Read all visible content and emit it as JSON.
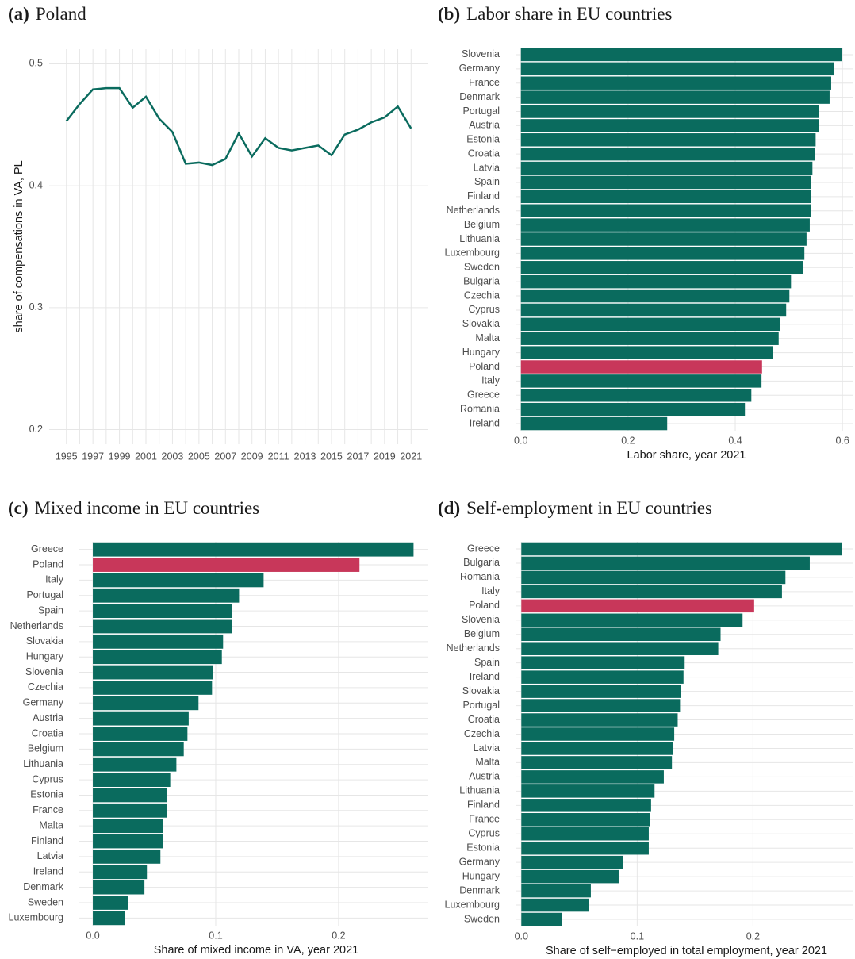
{
  "chart_data": [
    {
      "type": "line",
      "label": "(a)",
      "title": "Poland",
      "y_label": "share of compensations in VA, PL",
      "x": [
        1995,
        1996,
        1997,
        1998,
        1999,
        2000,
        2001,
        2002,
        2003,
        2004,
        2005,
        2006,
        2007,
        2008,
        2009,
        2010,
        2011,
        2012,
        2013,
        2014,
        2015,
        2016,
        2017,
        2018,
        2019,
        2020,
        2021
      ],
      "values": [
        0.453,
        0.467,
        0.479,
        0.48,
        0.48,
        0.464,
        0.473,
        0.455,
        0.444,
        0.418,
        0.419,
        0.417,
        0.422,
        0.443,
        0.424,
        0.439,
        0.431,
        0.429,
        0.431,
        0.433,
        0.425,
        0.442,
        0.446,
        0.452,
        0.456,
        0.465,
        0.447
      ],
      "color": "#0a6b5e",
      "xlim": [
        1993.7,
        2022.3
      ],
      "xticks": [
        1995,
        1997,
        1999,
        2001,
        2003,
        2005,
        2007,
        2009,
        2011,
        2013,
        2015,
        2017,
        2019,
        2021
      ],
      "ylim": [
        0.188,
        0.512
      ],
      "yticks": [
        0.2,
        0.3,
        0.4,
        0.5
      ],
      "grid": true
    },
    {
      "type": "barh",
      "label": "(b)",
      "title": "Labor share in EU countries",
      "x_label": "Labor share, year 2021",
      "categories": [
        "Slovenia",
        "Germany",
        "France",
        "Denmark",
        "Portugal",
        "Austria",
        "Estonia",
        "Croatia",
        "Latvia",
        "Spain",
        "Finland",
        "Netherlands",
        "Belgium",
        "Lithuania",
        "Luxembourg",
        "Sweden",
        "Bulgaria",
        "Czechia",
        "Cyprus",
        "Slovakia",
        "Malta",
        "Hungary",
        "Poland",
        "Italy",
        "Greece",
        "Romania",
        "Ireland"
      ],
      "values": [
        0.599,
        0.584,
        0.579,
        0.576,
        0.556,
        0.556,
        0.55,
        0.548,
        0.544,
        0.541,
        0.541,
        0.541,
        0.539,
        0.533,
        0.529,
        0.527,
        0.504,
        0.501,
        0.495,
        0.484,
        0.481,
        0.47,
        0.45,
        0.449,
        0.43,
        0.418,
        0.273
      ],
      "colors": [
        "#0a6b5e",
        "#0a6b5e",
        "#0a6b5e",
        "#0a6b5e",
        "#0a6b5e",
        "#0a6b5e",
        "#0a6b5e",
        "#0a6b5e",
        "#0a6b5e",
        "#0a6b5e",
        "#0a6b5e",
        "#0a6b5e",
        "#0a6b5e",
        "#0a6b5e",
        "#0a6b5e",
        "#0a6b5e",
        "#0a6b5e",
        "#0a6b5e",
        "#0a6b5e",
        "#0a6b5e",
        "#0a6b5e",
        "#0a6b5e",
        "#c8375a",
        "#0a6b5e",
        "#0a6b5e",
        "#0a6b5e",
        "#0a6b5e"
      ],
      "xlim": [
        -0.01,
        0.619
      ],
      "xticks": [
        {
          "value": 0,
          "label": "0.0"
        },
        0.2,
        0.4,
        0.6
      ],
      "grid": true
    },
    {
      "type": "barh",
      "label": "(c)",
      "title": "Mixed income in EU countries",
      "x_label": "Share of mixed income in VA, year 2021",
      "categories": [
        "Greece",
        "Poland",
        "Italy",
        "Portugal",
        "Spain",
        "Netherlands",
        "Slovakia",
        "Hungary",
        "Slovenia",
        "Czechia",
        "Germany",
        "Austria",
        "Croatia",
        "Belgium",
        "Lithuania",
        "Cyprus",
        "Estonia",
        "France",
        "Malta",
        "Finland",
        "Latvia",
        "Ireland",
        "Denmark",
        "Sweden",
        "Luxembourg"
      ],
      "values": [
        0.261,
        0.217,
        0.139,
        0.119,
        0.113,
        0.113,
        0.106,
        0.105,
        0.098,
        0.097,
        0.086,
        0.078,
        0.077,
        0.074,
        0.068,
        0.063,
        0.06,
        0.06,
        0.057,
        0.057,
        0.055,
        0.044,
        0.042,
        0.029,
        0.026
      ],
      "colors": [
        "#0a6b5e",
        "#c8375a",
        "#0a6b5e",
        "#0a6b5e",
        "#0a6b5e",
        "#0a6b5e",
        "#0a6b5e",
        "#0a6b5e",
        "#0a6b5e",
        "#0a6b5e",
        "#0a6b5e",
        "#0a6b5e",
        "#0a6b5e",
        "#0a6b5e",
        "#0a6b5e",
        "#0a6b5e",
        "#0a6b5e",
        "#0a6b5e",
        "#0a6b5e",
        "#0a6b5e",
        "#0a6b5e",
        "#0a6b5e",
        "#0a6b5e",
        "#0a6b5e",
        "#0a6b5e"
      ],
      "xlim": [
        -0.011,
        0.273
      ],
      "xticks": [
        {
          "value": 0,
          "label": "0.0"
        },
        0.1,
        0.2
      ],
      "grid": true
    },
    {
      "type": "barh",
      "label": "(d)",
      "title": "Self-employment in EU countries",
      "x_label": "Share of self−employed in total employment, year 2021",
      "categories": [
        "Greece",
        "Bulgaria",
        "Romania",
        "Italy",
        "Poland",
        "Slovenia",
        "Belgium",
        "Netherlands",
        "Spain",
        "Ireland",
        "Slovakia",
        "Portugal",
        "Croatia",
        "Czechia",
        "Latvia",
        "Malta",
        "Austria",
        "Lithuania",
        "Finland",
        "France",
        "Cyprus",
        "Estonia",
        "Germany",
        "Hungary",
        "Denmark",
        "Luxembourg",
        "Sweden"
      ],
      "values": [
        0.277,
        0.249,
        0.228,
        0.225,
        0.201,
        0.191,
        0.172,
        0.17,
        0.141,
        0.14,
        0.138,
        0.137,
        0.135,
        0.132,
        0.131,
        0.13,
        0.123,
        0.115,
        0.112,
        0.111,
        0.11,
        0.11,
        0.088,
        0.084,
        0.06,
        0.058,
        0.035
      ],
      "colors": [
        "#0a6b5e",
        "#0a6b5e",
        "#0a6b5e",
        "#0a6b5e",
        "#c8375a",
        "#0a6b5e",
        "#0a6b5e",
        "#0a6b5e",
        "#0a6b5e",
        "#0a6b5e",
        "#0a6b5e",
        "#0a6b5e",
        "#0a6b5e",
        "#0a6b5e",
        "#0a6b5e",
        "#0a6b5e",
        "#0a6b5e",
        "#0a6b5e",
        "#0a6b5e",
        "#0a6b5e",
        "#0a6b5e",
        "#0a6b5e",
        "#0a6b5e",
        "#0a6b5e",
        "#0a6b5e",
        "#0a6b5e",
        "#0a6b5e"
      ],
      "xlim": [
        -0.005,
        0.286
      ],
      "xticks": [
        {
          "value": 0,
          "label": "0.0"
        },
        0.1,
        0.2
      ],
      "grid": true
    }
  ]
}
